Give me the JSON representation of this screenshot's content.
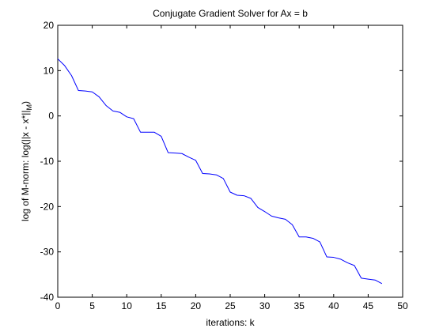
{
  "chart_data": {
    "type": "line",
    "title": "Conjugate Gradient Solver for Ax = b",
    "xlabel": "iterations: k",
    "ylabel": "log of M-norm: log(||x - x*||",
    "ylabel_sub": "M",
    "ylabel_tail": ")",
    "xlim": [
      0,
      50
    ],
    "ylim": [
      -40,
      20
    ],
    "xticks": [
      0,
      5,
      10,
      15,
      20,
      25,
      30,
      35,
      40,
      45,
      50
    ],
    "yticks": [
      -40,
      -30,
      -20,
      -10,
      0,
      10,
      20
    ],
    "grid": false,
    "legend": "none",
    "series": [
      {
        "color": "#0000ff",
        "x": [
          0,
          1,
          2,
          3,
          4,
          5,
          6,
          7,
          8,
          9,
          10,
          11,
          12,
          13,
          14,
          15,
          16,
          17,
          18,
          19,
          20,
          21,
          22,
          23,
          24,
          25,
          26,
          27,
          28,
          29,
          30,
          31,
          32,
          33,
          34,
          35,
          36,
          37,
          38,
          39,
          40,
          41,
          42,
          43,
          44,
          45,
          46,
          47
        ],
        "y": [
          12.6,
          11.1,
          8.9,
          5.6,
          5.5,
          5.3,
          4.2,
          2.3,
          1.1,
          0.8,
          -0.2,
          -0.6,
          -3.6,
          -3.6,
          -3.6,
          -4.5,
          -8.1,
          -8.2,
          -8.3,
          -9.1,
          -9.8,
          -12.7,
          -12.8,
          -13.0,
          -13.8,
          -16.8,
          -17.5,
          -17.6,
          -18.2,
          -20.2,
          -21.1,
          -22.1,
          -22.5,
          -22.8,
          -24.0,
          -26.7,
          -26.7,
          -27.0,
          -27.8,
          -31.1,
          -31.2,
          -31.6,
          -32.4,
          -33.0,
          -35.8,
          -36.0,
          -36.2,
          -37.0
        ]
      }
    ]
  }
}
